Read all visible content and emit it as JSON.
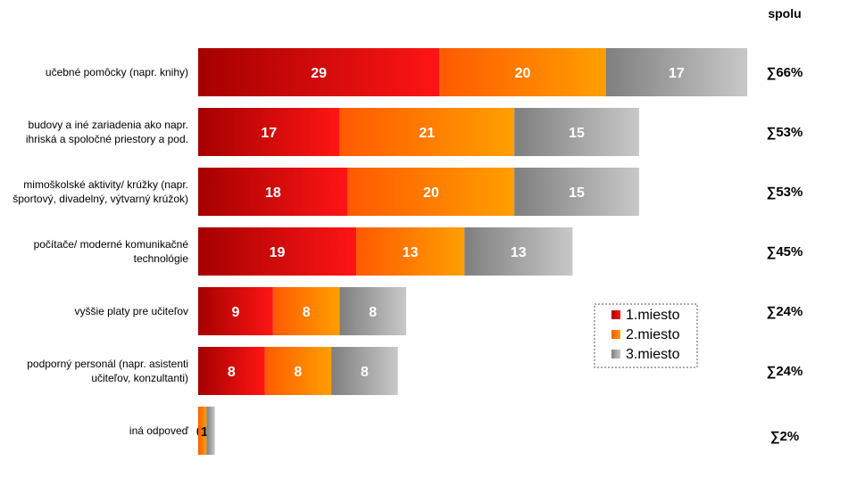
{
  "header": {
    "total_label": "spolu"
  },
  "chart_data": {
    "type": "bar",
    "orientation": "horizontal",
    "stacked": true,
    "categories": [
      [
        "učebné pomôcky (napr. knihy)"
      ],
      [
        "budovy a iné zariadenia ako napr.",
        "ihriská a spoločné priestory a pod."
      ],
      [
        "mimoškolské aktivity/ krúžky (napr.",
        "športový, divadelný, výtvarný krúžok)"
      ],
      [
        "počítače/ moderné komunikačné",
        "technológie"
      ],
      [
        "vyššie platy pre učiteľov"
      ],
      [
        "podporný personál (napr. asistenti",
        "učiteľov, konzultanti)"
      ],
      [
        "iná odpoveď"
      ]
    ],
    "series": [
      {
        "name": "1.miesto",
        "values": [
          29,
          17,
          18,
          19,
          9,
          8,
          0
        ],
        "color_dark": "#a50000",
        "color_light": "#ff1515"
      },
      {
        "name": "2.miesto",
        "values": [
          20,
          21,
          20,
          13,
          8,
          8,
          1
        ],
        "color_dark": "#ff5a00",
        "color_light": "#ff9f00"
      },
      {
        "name": "3.miesto",
        "values": [
          17,
          15,
          15,
          13,
          8,
          8,
          1
        ],
        "color_dark": "#7f7f7f",
        "color_light": "#c8c8c8"
      }
    ],
    "value_labels": [
      [
        "29",
        "20",
        "17"
      ],
      [
        "17",
        "21",
        "15"
      ],
      [
        "18",
        "20",
        "15"
      ],
      [
        "19",
        "13",
        "13"
      ],
      [
        "9",
        "8",
        "8"
      ],
      [
        "8",
        "8",
        "8"
      ],
      [
        "0",
        "1",
        ""
      ]
    ],
    "totals": [
      "∑66%",
      "∑53%",
      "∑53%",
      "∑45%",
      "∑24%",
      "∑24%",
      "∑2%"
    ],
    "xlim": [
      0,
      66
    ],
    "grid": false,
    "legend_position": "right"
  }
}
